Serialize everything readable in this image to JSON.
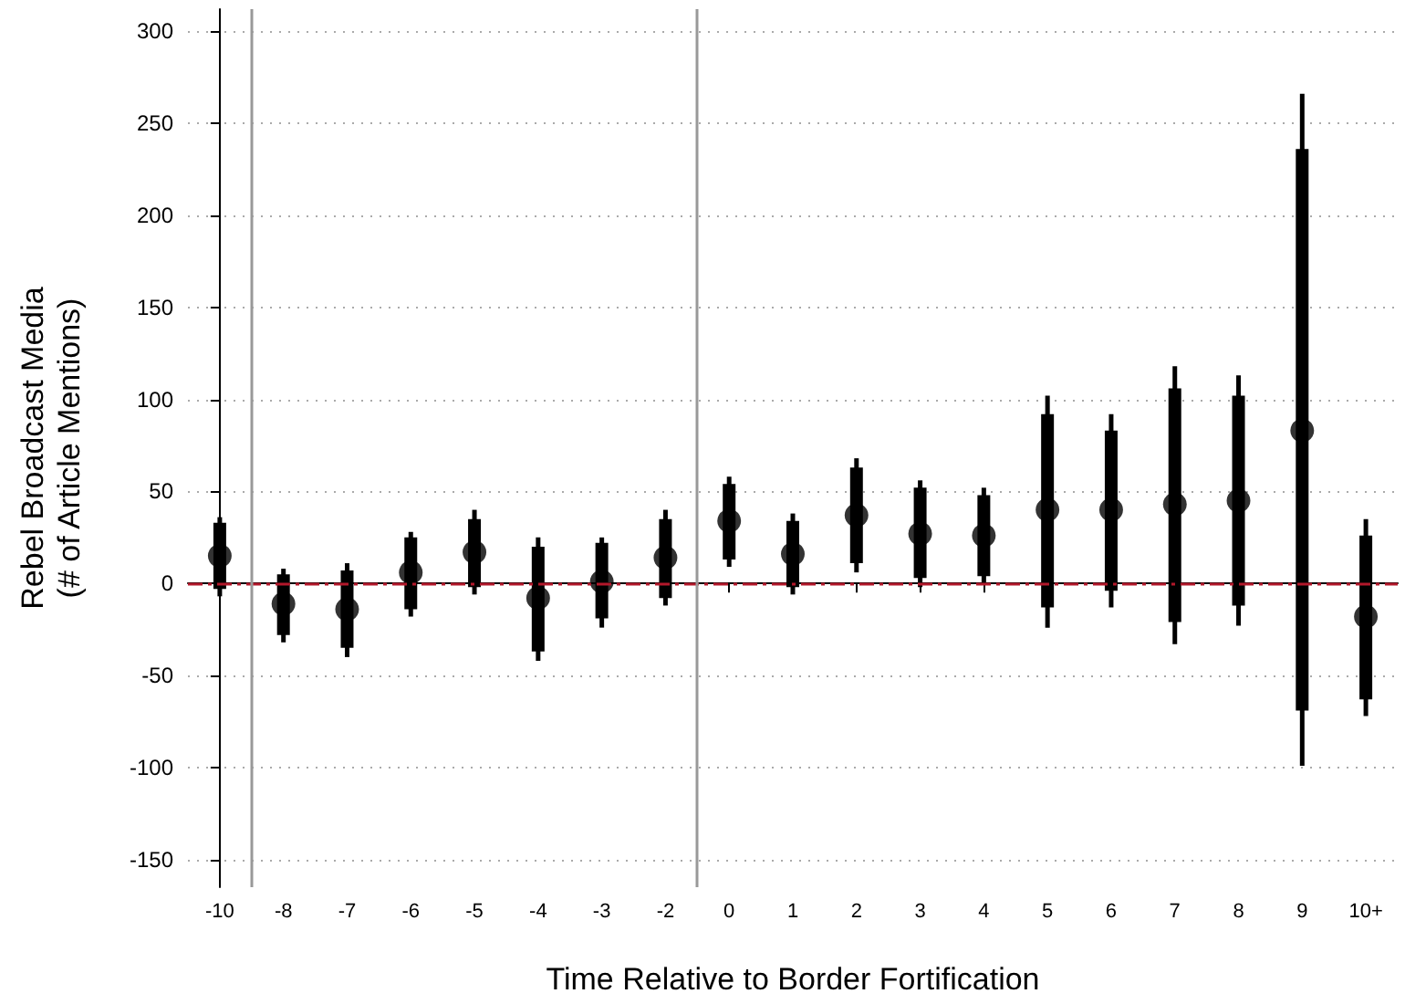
{
  "chart_data": {
    "type": "scatter",
    "xlabel": "Time Relative to Border Fortification",
    "ylabel": "Rebel Broadcast Media\n(# of Article Mentions)",
    "categories": [
      "-10",
      "-8",
      "-7",
      "-6",
      "-5",
      "-4",
      "-3",
      "-2",
      "0",
      "1",
      "2",
      "3",
      "4",
      "5",
      "6",
      "7",
      "8",
      "9",
      "10+"
    ],
    "series": [
      {
        "type": "bar",
        "color": "#000000",
        "base": [
          -3,
          -28,
          -35,
          -14,
          -2,
          -37,
          -19,
          -8,
          13,
          -2,
          11,
          3,
          4,
          -13,
          -4,
          -21,
          -12,
          -69,
          -63
        ],
        "values": [
          36,
          33,
          42,
          39,
          37,
          57,
          41,
          43,
          41,
          36,
          52,
          49,
          44,
          105,
          87,
          127,
          114,
          305,
          89
        ]
      },
      {
        "color": "#000000",
        "marker": "circle",
        "values": [
          15,
          -11,
          -14,
          6,
          17,
          -8,
          1,
          14,
          34,
          16,
          37,
          27,
          26,
          40,
          40,
          43,
          45,
          83,
          -18
        ],
        "errors": [
          [
            -7,
            36
          ],
          [
            -32,
            8
          ],
          [
            -40,
            11
          ],
          [
            -18,
            28
          ],
          [
            -6,
            40
          ],
          [
            -42,
            25
          ],
          [
            -24,
            25
          ],
          [
            -12,
            40
          ],
          [
            9,
            58
          ],
          [
            -6,
            38
          ],
          [
            6,
            68
          ],
          [
            -2,
            56
          ],
          [
            0,
            52
          ],
          [
            -24,
            102
          ],
          [
            -13,
            92
          ],
          [
            -33,
            118
          ],
          [
            -23,
            113
          ],
          [
            -99,
            266
          ],
          [
            -72,
            35
          ]
        ]
      }
    ],
    "ylim": [
      -165,
      312
    ],
    "yticks": [
      -150,
      -100,
      -50,
      0,
      50,
      100,
      150,
      200,
      250,
      300
    ],
    "grid": "y",
    "ref_lines": [
      {
        "axis": "y",
        "value": 0,
        "color": "#b2182b",
        "line_style": "dashdot"
      }
    ]
  }
}
